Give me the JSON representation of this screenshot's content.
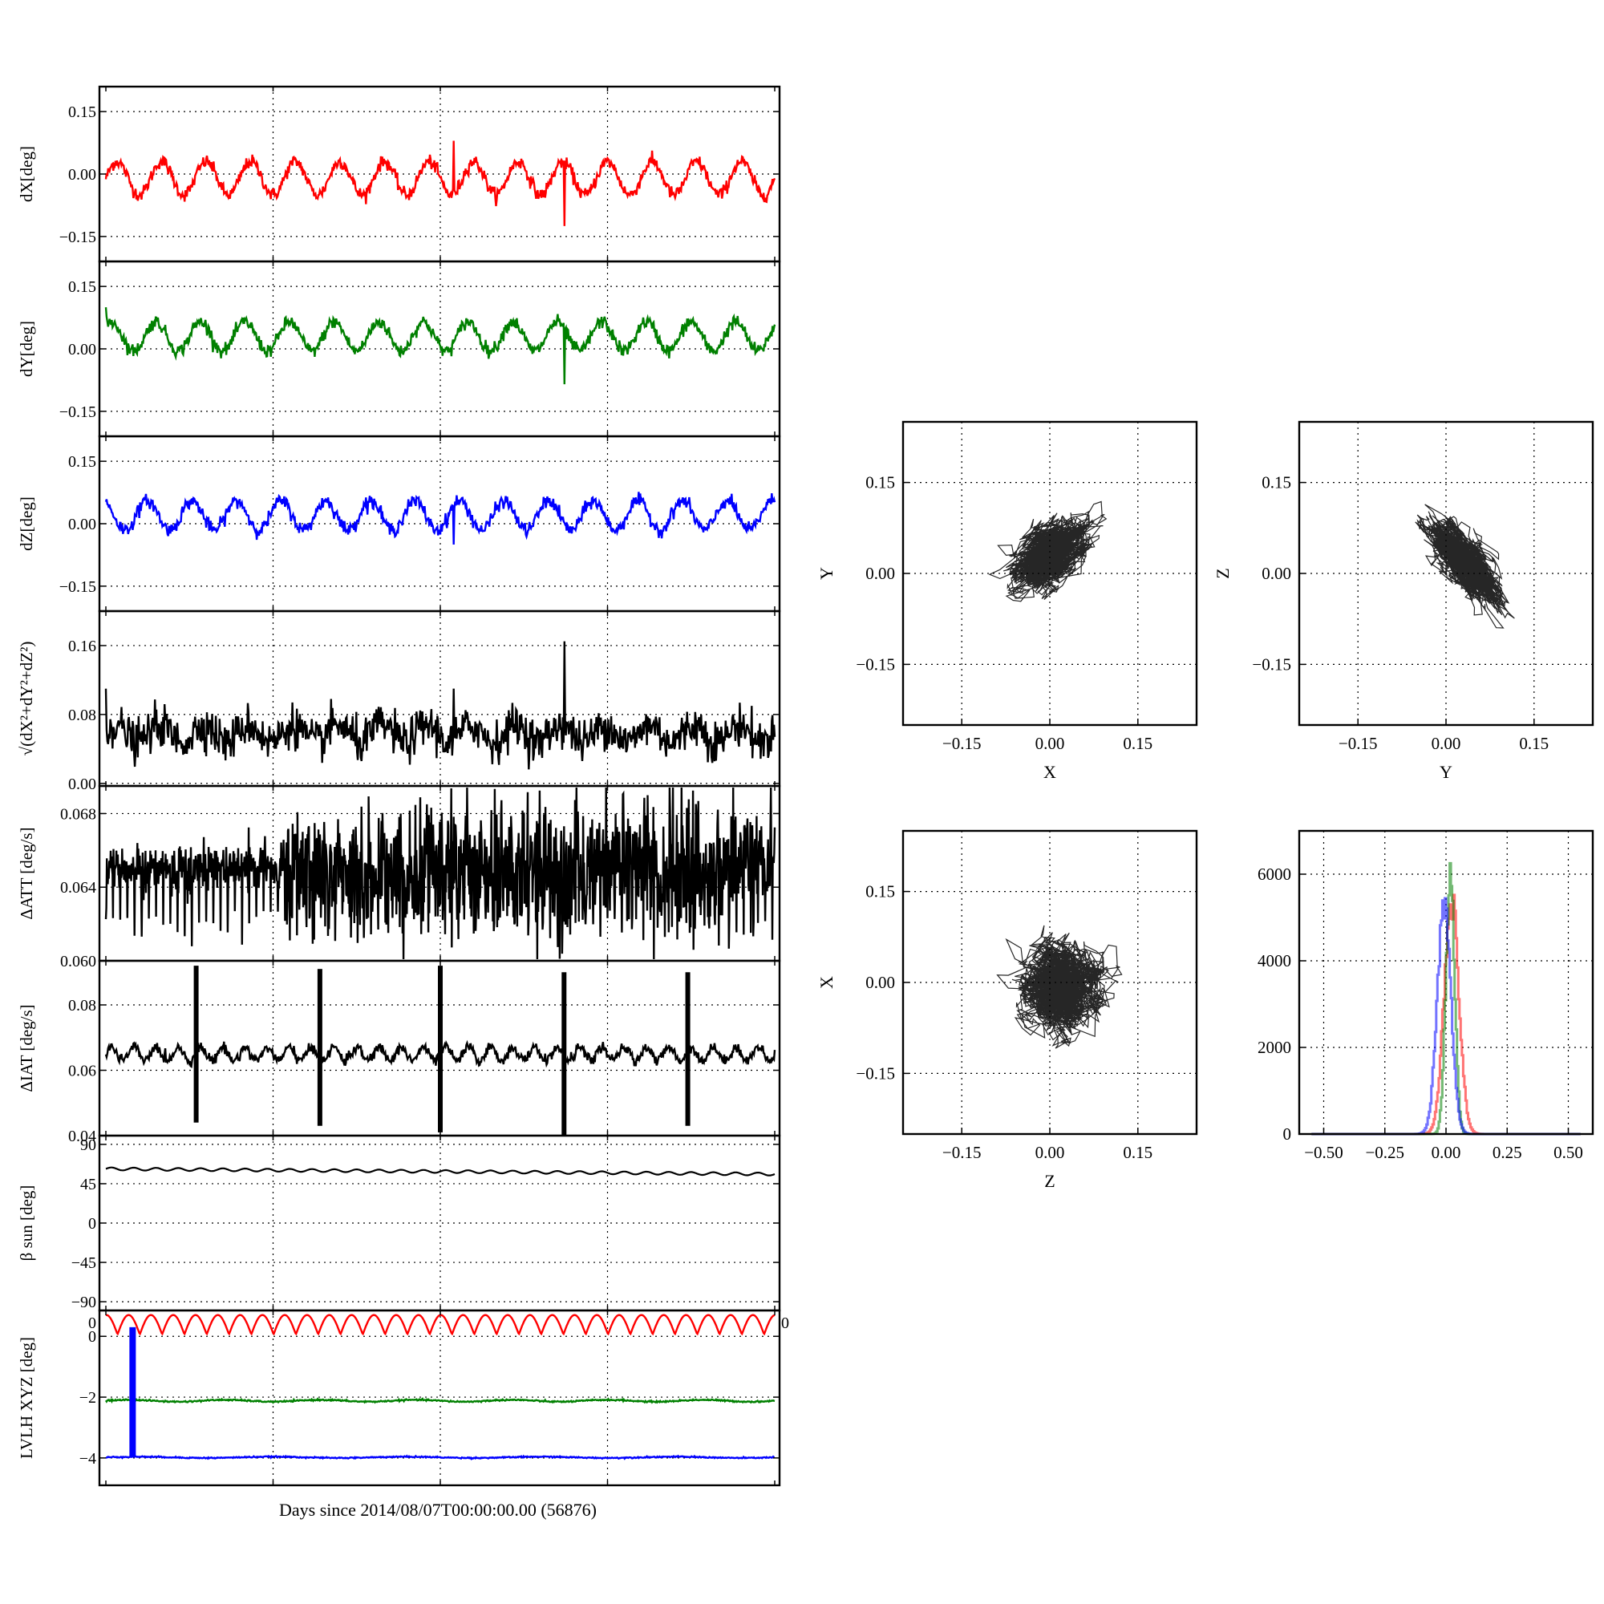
{
  "figure": {
    "shared_xlabel": "Days since 2014/08/07T00:00:00.00 (56876)"
  },
  "chart_data": [
    {
      "id": "dx",
      "type": "line",
      "ylabel": "dX[deg]",
      "ylim": [
        -0.21,
        0.21
      ],
      "yticks": [
        -0.15,
        0.0,
        0.15
      ],
      "ytick_labels": [
        "−0.15",
        "0.00",
        "0.15"
      ],
      "grid": true,
      "series": [
        {
          "color": "#ff0000",
          "baseline": -0.01,
          "amplitude": 0.04,
          "cycles": 15,
          "phase": 0.0,
          "noise": 0.008,
          "spikes": [
            {
              "at": 0.52,
              "value": 0.08
            },
            {
              "at": 0.685,
              "value": -0.125
            }
          ]
        }
      ]
    },
    {
      "id": "dy",
      "type": "line",
      "ylabel": "dY[deg]",
      "ylim": [
        -0.21,
        0.21
      ],
      "yticks": [
        -0.15,
        0.0,
        0.15
      ],
      "ytick_labels": [
        "−0.15",
        "0.00",
        "0.15"
      ],
      "grid": true,
      "series": [
        {
          "color": "#008000",
          "baseline": 0.03,
          "amplitude": 0.035,
          "cycles": 15,
          "phase": 0.8,
          "noise": 0.008,
          "spikes": [
            {
              "at": 0.685,
              "value": -0.085
            },
            {
              "at": 0.0,
              "value": 0.1
            }
          ]
        }
      ]
    },
    {
      "id": "dz",
      "type": "line",
      "ylabel": "dZ[deg]",
      "ylim": [
        -0.21,
        0.21
      ],
      "yticks": [
        -0.15,
        0.0,
        0.15
      ],
      "ytick_labels": [
        "−0.15",
        "0.00",
        "0.15"
      ],
      "grid": true,
      "series": [
        {
          "color": "#0000ff",
          "baseline": 0.02,
          "amplitude": 0.035,
          "cycles": 15,
          "phase": 2.0,
          "noise": 0.008,
          "spikes": [
            {
              "at": 0.52,
              "value": -0.05
            }
          ]
        }
      ]
    },
    {
      "id": "dnorm",
      "type": "line",
      "ylabel": "√(dX²+dY²+dZ²)",
      "ylim": [
        -0.003,
        0.2
      ],
      "yticks": [
        0.0,
        0.08,
        0.16
      ],
      "ytick_labels": [
        "0.00",
        "0.08",
        "0.16"
      ],
      "grid": true,
      "series": [
        {
          "color": "#000000",
          "baseline": 0.058,
          "amplitude": 0.01,
          "cycles": 15,
          "phase": 0.3,
          "noise": 0.012,
          "spikes": [
            {
              "at": 0.685,
              "value": 0.165
            },
            {
              "at": 0.52,
              "value": 0.11
            },
            {
              "at": 0.0,
              "value": 0.11
            }
          ]
        }
      ]
    },
    {
      "id": "datt",
      "type": "line",
      "ylabel": "ΔATT [deg/s]",
      "ylim": [
        0.06,
        0.0695
      ],
      "yticks": [
        0.06,
        0.064,
        0.068
      ],
      "ytick_labels": [
        "0.060",
        "0.064",
        "0.068"
      ],
      "grid": true,
      "series": [
        {
          "color": "#000000",
          "baseline": 0.065,
          "amplitude": 0.0003,
          "cycles": 90,
          "phase": 0.0,
          "noise": 0.0018,
          "spikes": [
            {
              "at": 0.81,
              "value": 0.069
            },
            {
              "at": 0.48,
              "value": 0.0685
            }
          ]
        }
      ]
    },
    {
      "id": "diat",
      "type": "line",
      "ylabel": "ΔIAT [deg/s]",
      "ylim": [
        0.04,
        0.0935
      ],
      "yticks": [
        0.04,
        0.06,
        0.08
      ],
      "ytick_labels": [
        "0.04",
        "0.06",
        "0.08"
      ],
      "grid": true,
      "series": [
        {
          "color": "#000000",
          "baseline": 0.065,
          "amplitude": 0.002,
          "cycles": 30,
          "phase": 0.0,
          "noise": 0.0008,
          "bursts": [
            {
              "at": 0.135,
              "low": 0.044,
              "high": 0.092
            },
            {
              "at": 0.32,
              "low": 0.043,
              "high": 0.091
            },
            {
              "at": 0.5,
              "low": 0.041,
              "high": 0.092
            },
            {
              "at": 0.685,
              "low": 0.04,
              "high": 0.09
            },
            {
              "at": 0.87,
              "low": 0.043,
              "high": 0.09
            }
          ]
        }
      ]
    },
    {
      "id": "beta",
      "type": "line",
      "ylabel": "β sun [deg]",
      "ylim": [
        -100,
        100
      ],
      "yticks": [
        -90,
        -45,
        0,
        45,
        90
      ],
      "ytick_labels": [
        "−90",
        "−45",
        "0",
        "45",
        "90"
      ],
      "grid": true,
      "series": [
        {
          "color": "#000000",
          "baseline": 62,
          "amplitude": 1.6,
          "cycles": 30,
          "phase": 0.0,
          "noise": 0.0,
          "trend": -6
        }
      ]
    },
    {
      "id": "lvlh",
      "type": "line",
      "ylabel": "LVLH XYZ [deg]",
      "ylim": [
        -4.9,
        0.85
      ],
      "yticks": [
        -4,
        -2,
        0
      ],
      "ytick_labels": [
        "−4",
        "−2",
        "0"
      ],
      "extra_left_tick": "0",
      "extra_right_tick": "0",
      "grid": true,
      "series": [
        {
          "color": "#ff0000",
          "baseline": 0.38,
          "amplitude": 0.32,
          "cycles": 15,
          "phase": 1.5,
          "noise": 0.0,
          "shape": "abs"
        },
        {
          "color": "#008000",
          "baseline": -2.12,
          "amplitude": 0.03,
          "cycles": 7,
          "phase": 0.0,
          "noise": 0.012
        },
        {
          "color": "#0000ff",
          "baseline": -3.98,
          "amplitude": 0.02,
          "cycles": 5,
          "phase": 0.0,
          "noise": 0.01,
          "bar": {
            "at": 0.04,
            "from": 0.3,
            "to": -3.98
          }
        }
      ]
    },
    {
      "id": "xy",
      "type": "scatter",
      "xlabel": "X",
      "ylabel": "Y",
      "xlim": [
        -0.25,
        0.25
      ],
      "ylim": [
        -0.25,
        0.25
      ],
      "ticks": [
        -0.15,
        0.0,
        0.15
      ],
      "tick_labels": [
        "−0.15",
        "0.00",
        "0.15"
      ],
      "grid": true,
      "cloud": {
        "cx": 0.0,
        "cy": 0.03,
        "sx": 0.03,
        "sy": 0.025,
        "rho": 0.55
      }
    },
    {
      "id": "yz",
      "type": "scatter",
      "xlabel": "Y",
      "ylabel": "Z",
      "xlim": [
        -0.25,
        0.25
      ],
      "ylim": [
        -0.25,
        0.25
      ],
      "ticks": [
        -0.15,
        0.0,
        0.15
      ],
      "tick_labels": [
        "−0.15",
        "0.00",
        "0.15"
      ],
      "grid": true,
      "cloud": {
        "cx": 0.03,
        "cy": 0.02,
        "sx": 0.025,
        "sy": 0.03,
        "rho": -0.7
      }
    },
    {
      "id": "zx",
      "type": "scatter",
      "xlabel": "Z",
      "ylabel": "X",
      "xlim": [
        -0.25,
        0.25
      ],
      "ylim": [
        -0.25,
        0.25
      ],
      "ticks": [
        -0.15,
        0.0,
        0.15
      ],
      "tick_labels": [
        "−0.15",
        "0.00",
        "0.15"
      ],
      "grid": true,
      "cloud": {
        "cx": 0.02,
        "cy": -0.01,
        "sx": 0.032,
        "sy": 0.03,
        "rho": 0.0
      }
    },
    {
      "id": "hist",
      "type": "histogram",
      "xlim": [
        -0.6,
        0.6
      ],
      "ylim": [
        0,
        7000
      ],
      "xticks": [
        -0.5,
        -0.25,
        0.0,
        0.25,
        0.5
      ],
      "xtick_labels": [
        "−0.50",
        "−0.25",
        "0.00",
        "0.25",
        "0.50"
      ],
      "yticks": [
        0,
        2000,
        4000,
        6000
      ],
      "ytick_labels": [
        "0",
        "2000",
        "4000",
        "6000"
      ],
      "grid": true,
      "series": [
        {
          "color": "#ff0000",
          "center": 0.02,
          "width": 0.03,
          "peak": 5900
        },
        {
          "color": "#008000",
          "center": 0.015,
          "width": 0.018,
          "peak": 6600
        },
        {
          "color": "#0000ff",
          "center": -0.01,
          "width": 0.028,
          "peak": 5700
        }
      ]
    }
  ]
}
